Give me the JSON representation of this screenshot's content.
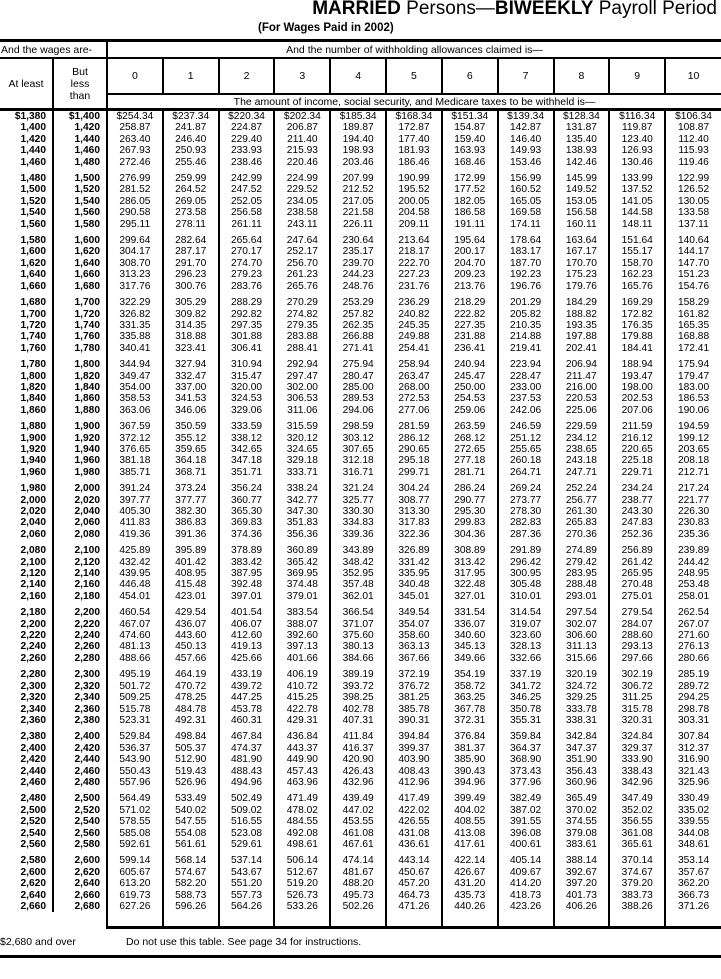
{
  "header": {
    "title_bold1": "MARRIED",
    "title_mid": " Persons—",
    "title_bold2": "BIWEEKLY",
    "title_end": " Payroll Period",
    "subtitle": "(For Wages Paid in 2002)"
  },
  "table": {
    "wages_header": "And the wages are-",
    "allowances_header": "And the number of withholding allowances claimed is—",
    "at_least_label": "At least",
    "but_less_label": "But less than",
    "amount_caption": "The amount of income, social security, and Medicare taxes to be withheld is—",
    "allowances": [
      "0",
      "1",
      "2",
      "3",
      "4",
      "5",
      "6",
      "7",
      "8",
      "9",
      "10"
    ],
    "at_least": [
      "$1,380",
      "1,400",
      "1,420",
      "1,440",
      "1,460",
      "1,480",
      "1,500",
      "1,520",
      "1,540",
      "1,560",
      "1,580",
      "1,600",
      "1,620",
      "1,640",
      "1,660",
      "1,680",
      "1,700",
      "1,720",
      "1,740",
      "1,760",
      "1,780",
      "1,800",
      "1,820",
      "1,840",
      "1,860",
      "1,880",
      "1,900",
      "1,920",
      "1,940",
      "1,960",
      "1,980",
      "2,000",
      "2,020",
      "2,040",
      "2,060",
      "2,080",
      "2,100",
      "2,120",
      "2,140",
      "2,160",
      "2,180",
      "2,200",
      "2,220",
      "2,240",
      "2,260",
      "2,280",
      "2,300",
      "2,320",
      "2,340",
      "2,360",
      "2,380",
      "2,400",
      "2,420",
      "2,440",
      "2,460",
      "2,480",
      "2,500",
      "2,520",
      "2,540",
      "2,560",
      "2,580",
      "2,600",
      "2,620",
      "2,640",
      "2,660"
    ],
    "but_less": [
      "$1,400",
      "1,420",
      "1,440",
      "1,460",
      "1,480",
      "1,500",
      "1,520",
      "1,540",
      "1,560",
      "1,580",
      "1,600",
      "1,620",
      "1,640",
      "1,660",
      "1,680",
      "1,700",
      "1,720",
      "1,740",
      "1,760",
      "1,780",
      "1,800",
      "1,820",
      "1,840",
      "1,860",
      "1,880",
      "1,900",
      "1,920",
      "1,940",
      "1,960",
      "1,980",
      "2,000",
      "2,020",
      "2,040",
      "2,060",
      "2,080",
      "2,100",
      "2,120",
      "2,140",
      "2,160",
      "2,180",
      "2,200",
      "2,220",
      "2,240",
      "2,260",
      "2,280",
      "2,300",
      "2,320",
      "2,340",
      "2,360",
      "2,380",
      "2,400",
      "2,420",
      "2,440",
      "2,460",
      "2,480",
      "2,500",
      "2,520",
      "2,540",
      "2,560",
      "2,580",
      "2,600",
      "2,620",
      "2,640",
      "2,660",
      "2,680"
    ],
    "columns": [
      [
        "$254.34",
        "258.87",
        "263.40",
        "267.93",
        "272.46",
        "276.99",
        "281.52",
        "286.05",
        "290.58",
        "295.11",
        "299.64",
        "304.17",
        "308.70",
        "313.23",
        "317.76",
        "322.29",
        "326.82",
        "331.35",
        "335.88",
        "340.41",
        "344.94",
        "349.47",
        "354.00",
        "358.53",
        "363.06",
        "367.59",
        "372.12",
        "376.65",
        "381.18",
        "385.71",
        "391.24",
        "397.77",
        "405.30",
        "411.83",
        "419.36",
        "425.89",
        "432.42",
        "439.95",
        "446.48",
        "454.01",
        "460.54",
        "467.07",
        "474.60",
        "481.13",
        "488.66",
        "495.19",
        "501.72",
        "509.25",
        "515.78",
        "523.31",
        "529.84",
        "536.37",
        "543.90",
        "550.43",
        "557.96",
        "564.49",
        "571.02",
        "578.55",
        "585.08",
        "592.61",
        "599.14",
        "605.67",
        "613.20",
        "619.73",
        "627.26"
      ],
      [
        "$237.34",
        "241.87",
        "246.40",
        "250.93",
        "255.46",
        "259.99",
        "264.52",
        "269.05",
        "273.58",
        "278.11",
        "282.64",
        "287.17",
        "291.70",
        "296.23",
        "300.76",
        "305.29",
        "309.82",
        "314.35",
        "318.88",
        "323.41",
        "327.94",
        "332.47",
        "337.00",
        "341.53",
        "346.06",
        "350.59",
        "355.12",
        "359.65",
        "364.18",
        "368.71",
        "373.24",
        "377.77",
        "382.30",
        "386.83",
        "391.36",
        "395.89",
        "401.42",
        "408.95",
        "415.48",
        "423.01",
        "429.54",
        "436.07",
        "443.60",
        "450.13",
        "457.66",
        "464.19",
        "470.72",
        "478.25",
        "484.78",
        "492.31",
        "498.84",
        "505.37",
        "512.90",
        "519.43",
        "526.96",
        "533.49",
        "540.02",
        "547.55",
        "554.08",
        "561.61",
        "568.14",
        "574.67",
        "582.20",
        "588.73",
        "596.26"
      ],
      [
        "$220.34",
        "224.87",
        "229.40",
        "233.93",
        "238.46",
        "242.99",
        "247.52",
        "252.05",
        "256.58",
        "261.11",
        "265.64",
        "270.17",
        "274.70",
        "279.23",
        "283.76",
        "288.29",
        "292.82",
        "297.35",
        "301.88",
        "306.41",
        "310.94",
        "315.47",
        "320.00",
        "324.53",
        "329.06",
        "333.59",
        "338.12",
        "342.65",
        "347.18",
        "351.71",
        "356.24",
        "360.77",
        "365.30",
        "369.83",
        "374.36",
        "378.89",
        "383.42",
        "387.95",
        "392.48",
        "397.01",
        "401.54",
        "406.07",
        "412.60",
        "419.13",
        "425.66",
        "433.19",
        "439.72",
        "447.25",
        "453.78",
        "460.31",
        "467.84",
        "474.37",
        "481.90",
        "488.43",
        "494.96",
        "502.49",
        "509.02",
        "516.55",
        "523.08",
        "529.61",
        "537.14",
        "543.67",
        "551.20",
        "557.73",
        "564.26"
      ],
      [
        "$202.34",
        "206.87",
        "211.40",
        "215.93",
        "220.46",
        "224.99",
        "229.52",
        "234.05",
        "238.58",
        "243.11",
        "247.64",
        "252.17",
        "256.70",
        "261.23",
        "265.76",
        "270.29",
        "274.82",
        "279.35",
        "283.88",
        "288.41",
        "292.94",
        "297.47",
        "302.00",
        "306.53",
        "311.06",
        "315.59",
        "320.12",
        "324.65",
        "329.18",
        "333.71",
        "338.24",
        "342.77",
        "347.30",
        "351.83",
        "356.36",
        "360.89",
        "365.42",
        "369.95",
        "374.48",
        "379.01",
        "383.54",
        "388.07",
        "392.60",
        "397.13",
        "401.66",
        "406.19",
        "410.72",
        "415.25",
        "422.78",
        "429.31",
        "436.84",
        "443.37",
        "449.90",
        "457.43",
        "463.96",
        "471.49",
        "478.02",
        "484.55",
        "492.08",
        "498.61",
        "506.14",
        "512.67",
        "519.20",
        "526.73",
        "533.26"
      ],
      [
        "$185.34",
        "189.87",
        "194.40",
        "198.93",
        "203.46",
        "207.99",
        "212.52",
        "217.05",
        "221.58",
        "226.11",
        "230.64",
        "235.17",
        "239.70",
        "244.23",
        "248.76",
        "253.29",
        "257.82",
        "262.35",
        "266.88",
        "271.41",
        "275.94",
        "280.47",
        "285.00",
        "289.53",
        "294.06",
        "298.59",
        "303.12",
        "307.65",
        "312.18",
        "316.71",
        "321.24",
        "325.77",
        "330.30",
        "334.83",
        "339.36",
        "343.89",
        "348.42",
        "352.95",
        "357.48",
        "362.01",
        "366.54",
        "371.07",
        "375.60",
        "380.13",
        "384.66",
        "389.19",
        "393.72",
        "398.25",
        "402.78",
        "407.31",
        "411.84",
        "416.37",
        "420.90",
        "426.43",
        "432.96",
        "439.49",
        "447.02",
        "453.55",
        "461.08",
        "467.61",
        "474.14",
        "481.67",
        "488.20",
        "495.73",
        "502.26"
      ],
      [
        "$168.34",
        "172.87",
        "177.40",
        "181.93",
        "186.46",
        "190.99",
        "195.52",
        "200.05",
        "204.58",
        "209.11",
        "213.64",
        "218.17",
        "222.70",
        "227.23",
        "231.76",
        "236.29",
        "240.82",
        "245.35",
        "249.88",
        "254.41",
        "258.94",
        "263.47",
        "268.00",
        "272.53",
        "277.06",
        "281.59",
        "286.12",
        "290.65",
        "295.18",
        "299.71",
        "304.24",
        "308.77",
        "313.30",
        "317.83",
        "322.36",
        "326.89",
        "331.42",
        "335.95",
        "340.48",
        "345.01",
        "349.54",
        "354.07",
        "358.60",
        "363.13",
        "367.66",
        "372.19",
        "376.72",
        "381.25",
        "385.78",
        "390.31",
        "394.84",
        "399.37",
        "403.90",
        "408.43",
        "412.96",
        "417.49",
        "422.02",
        "426.55",
        "431.08",
        "436.61",
        "443.14",
        "450.67",
        "457.20",
        "464.73",
        "471.26"
      ],
      [
        "$151.34",
        "154.87",
        "159.40",
        "163.93",
        "168.46",
        "172.99",
        "177.52",
        "182.05",
        "186.58",
        "191.11",
        "195.64",
        "200.17",
        "204.70",
        "209.23",
        "213.76",
        "218.29",
        "222.82",
        "227.35",
        "231.88",
        "236.41",
        "240.94",
        "245.47",
        "250.00",
        "254.53",
        "259.06",
        "263.59",
        "268.12",
        "272.65",
        "277.18",
        "281.71",
        "286.24",
        "290.77",
        "295.30",
        "299.83",
        "304.36",
        "308.89",
        "313.42",
        "317.95",
        "322.48",
        "327.01",
        "331.54",
        "336.07",
        "340.60",
        "345.13",
        "349.66",
        "354.19",
        "358.72",
        "363.25",
        "367.78",
        "372.31",
        "376.84",
        "381.37",
        "385.90",
        "390.43",
        "394.96",
        "399.49",
        "404.02",
        "408.55",
        "413.08",
        "417.61",
        "422.14",
        "426.67",
        "431.20",
        "435.73",
        "440.26"
      ],
      [
        "$139.34",
        "142.87",
        "146.40",
        "149.93",
        "153.46",
        "156.99",
        "160.52",
        "165.05",
        "169.58",
        "174.11",
        "178.64",
        "183.17",
        "187.70",
        "192.23",
        "196.76",
        "201.29",
        "205.82",
        "210.35",
        "214.88",
        "219.41",
        "223.94",
        "228.47",
        "233.00",
        "237.53",
        "242.06",
        "246.59",
        "251.12",
        "255.65",
        "260.18",
        "264.71",
        "269.24",
        "273.77",
        "278.30",
        "282.83",
        "287.36",
        "291.89",
        "296.42",
        "300.95",
        "305.48",
        "310.01",
        "314.54",
        "319.07",
        "323.60",
        "328.13",
        "332.66",
        "337.19",
        "341.72",
        "346.25",
        "350.78",
        "355.31",
        "359.84",
        "364.37",
        "368.90",
        "373.43",
        "377.96",
        "382.49",
        "387.02",
        "391.55",
        "396.08",
        "400.61",
        "405.14",
        "409.67",
        "414.20",
        "418.73",
        "423.26"
      ],
      [
        "$128.34",
        "131.87",
        "135.40",
        "138.93",
        "142.46",
        "145.99",
        "149.52",
        "153.05",
        "156.58",
        "160.11",
        "163.64",
        "167.17",
        "170.70",
        "175.23",
        "179.76",
        "184.29",
        "188.82",
        "193.35",
        "197.88",
        "202.41",
        "206.94",
        "211.47",
        "216.00",
        "220.53",
        "225.06",
        "229.59",
        "234.12",
        "238.65",
        "243.18",
        "247.71",
        "252.24",
        "256.77",
        "261.30",
        "265.83",
        "270.36",
        "274.89",
        "279.42",
        "283.95",
        "288.48",
        "293.01",
        "297.54",
        "302.07",
        "306.60",
        "311.13",
        "315.66",
        "320.19",
        "324.72",
        "329.25",
        "333.78",
        "338.31",
        "342.84",
        "347.37",
        "351.90",
        "356.43",
        "360.96",
        "365.49",
        "370.02",
        "374.55",
        "379.08",
        "383.61",
        "388.14",
        "392.67",
        "397.20",
        "401.73",
        "406.26"
      ],
      [
        "$116.34",
        "119.87",
        "123.40",
        "126.93",
        "130.46",
        "133.99",
        "137.52",
        "141.05",
        "144.58",
        "148.11",
        "151.64",
        "155.17",
        "158.70",
        "162.23",
        "165.76",
        "169.29",
        "172.82",
        "176.35",
        "179.88",
        "184.41",
        "188.94",
        "193.47",
        "198.00",
        "202.53",
        "207.06",
        "211.59",
        "216.12",
        "220.65",
        "225.18",
        "229.71",
        "234.24",
        "238.77",
        "243.30",
        "247.83",
        "252.36",
        "256.89",
        "261.42",
        "265.95",
        "270.48",
        "275.01",
        "279.54",
        "284.07",
        "288.60",
        "293.13",
        "297.66",
        "302.19",
        "306.72",
        "311.25",
        "315.78",
        "320.31",
        "324.84",
        "329.37",
        "333.90",
        "338.43",
        "342.96",
        "347.49",
        "352.02",
        "356.55",
        "361.08",
        "365.61",
        "370.14",
        "374.67",
        "379.20",
        "383.73",
        "388.26"
      ],
      [
        "$106.34",
        "108.87",
        "112.40",
        "115.93",
        "119.46",
        "122.99",
        "126.52",
        "130.05",
        "133.58",
        "137.11",
        "140.64",
        "144.17",
        "147.70",
        "151.23",
        "154.76",
        "158.29",
        "161.82",
        "165.35",
        "168.88",
        "172.41",
        "175.94",
        "179.47",
        "183.00",
        "186.53",
        "190.06",
        "194.59",
        "199.12",
        "203.65",
        "208.18",
        "212.71",
        "217.24",
        "221.77",
        "226.30",
        "230.83",
        "235.36",
        "239.89",
        "244.42",
        "248.95",
        "253.48",
        "258.01",
        "262.54",
        "267.07",
        "271.60",
        "276.13",
        "280.66",
        "285.19",
        "289.72",
        "294.25",
        "298.78",
        "303.31",
        "307.84",
        "312.37",
        "316.90",
        "321.43",
        "325.96",
        "330.49",
        "335.02",
        "339.55",
        "344.08",
        "348.61",
        "353.14",
        "357.67",
        "362.20",
        "366.73",
        "371.26"
      ]
    ]
  },
  "footer": {
    "over_label": "$2,680 and over",
    "instruction": "Do not use this table. See page 34 for instructions."
  }
}
